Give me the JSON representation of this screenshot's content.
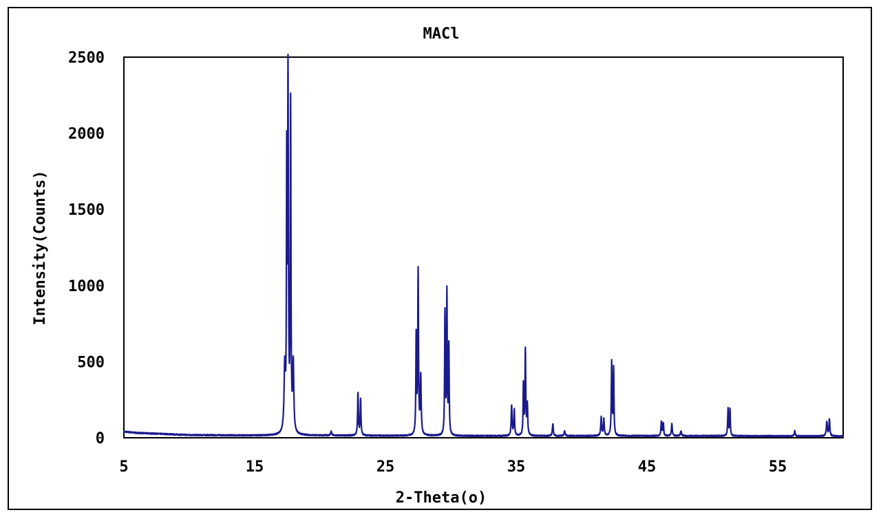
{
  "chart_data": {
    "type": "line",
    "title": "MACl",
    "xlabel": "2-Theta(o)",
    "ylabel": "Intensity(Counts)",
    "xlim": [
      5,
      60
    ],
    "ylim": [
      0,
      2500
    ],
    "x_ticks": [
      "5",
      "15",
      "25",
      "35",
      "45",
      "55"
    ],
    "y_ticks": [
      "0",
      "500",
      "1000",
      "1500",
      "2000",
      "2500"
    ],
    "grid": false,
    "legend": "none",
    "series_color": "#1a1a8c",
    "baseline": [
      [
        5,
        40
      ],
      [
        6,
        32
      ],
      [
        8,
        25
      ],
      [
        10,
        18
      ],
      [
        15,
        15
      ],
      [
        20,
        15
      ],
      [
        30,
        12
      ],
      [
        40,
        12
      ],
      [
        50,
        12
      ],
      [
        60,
        10
      ]
    ],
    "peaks": [
      {
        "x": 17.45,
        "y": 1660,
        "w": 0.05
      },
      {
        "x": 17.55,
        "y": 2330,
        "w": 0.07
      },
      {
        "x": 17.75,
        "y": 2130,
        "w": 0.06
      },
      {
        "x": 17.3,
        "y": 420,
        "w": 0.12
      },
      {
        "x": 17.95,
        "y": 450,
        "w": 0.1
      },
      {
        "x": 20.85,
        "y": 25,
        "w": 0.1
      },
      {
        "x": 22.9,
        "y": 280,
        "w": 0.07
      },
      {
        "x": 23.1,
        "y": 240,
        "w": 0.07
      },
      {
        "x": 27.35,
        "y": 640,
        "w": 0.06
      },
      {
        "x": 27.5,
        "y": 1075,
        "w": 0.07
      },
      {
        "x": 27.7,
        "y": 380,
        "w": 0.08
      },
      {
        "x": 29.55,
        "y": 800,
        "w": 0.06
      },
      {
        "x": 29.7,
        "y": 930,
        "w": 0.06
      },
      {
        "x": 29.85,
        "y": 580,
        "w": 0.06
      },
      {
        "x": 34.65,
        "y": 200,
        "w": 0.08
      },
      {
        "x": 34.85,
        "y": 170,
        "w": 0.07
      },
      {
        "x": 35.55,
        "y": 330,
        "w": 0.06
      },
      {
        "x": 35.7,
        "y": 560,
        "w": 0.07
      },
      {
        "x": 35.85,
        "y": 200,
        "w": 0.07
      },
      {
        "x": 37.8,
        "y": 80,
        "w": 0.08
      },
      {
        "x": 38.7,
        "y": 30,
        "w": 0.1
      },
      {
        "x": 41.5,
        "y": 120,
        "w": 0.08
      },
      {
        "x": 41.7,
        "y": 110,
        "w": 0.08
      },
      {
        "x": 42.3,
        "y": 480,
        "w": 0.07
      },
      {
        "x": 42.45,
        "y": 440,
        "w": 0.06
      },
      {
        "x": 46.1,
        "y": 95,
        "w": 0.08
      },
      {
        "x": 46.25,
        "y": 80,
        "w": 0.07
      },
      {
        "x": 46.9,
        "y": 80,
        "w": 0.08
      },
      {
        "x": 47.6,
        "y": 30,
        "w": 0.1
      },
      {
        "x": 51.2,
        "y": 180,
        "w": 0.07
      },
      {
        "x": 51.35,
        "y": 170,
        "w": 0.06
      },
      {
        "x": 56.3,
        "y": 35,
        "w": 0.08
      },
      {
        "x": 58.75,
        "y": 95,
        "w": 0.09
      },
      {
        "x": 58.95,
        "y": 110,
        "w": 0.08
      }
    ]
  }
}
